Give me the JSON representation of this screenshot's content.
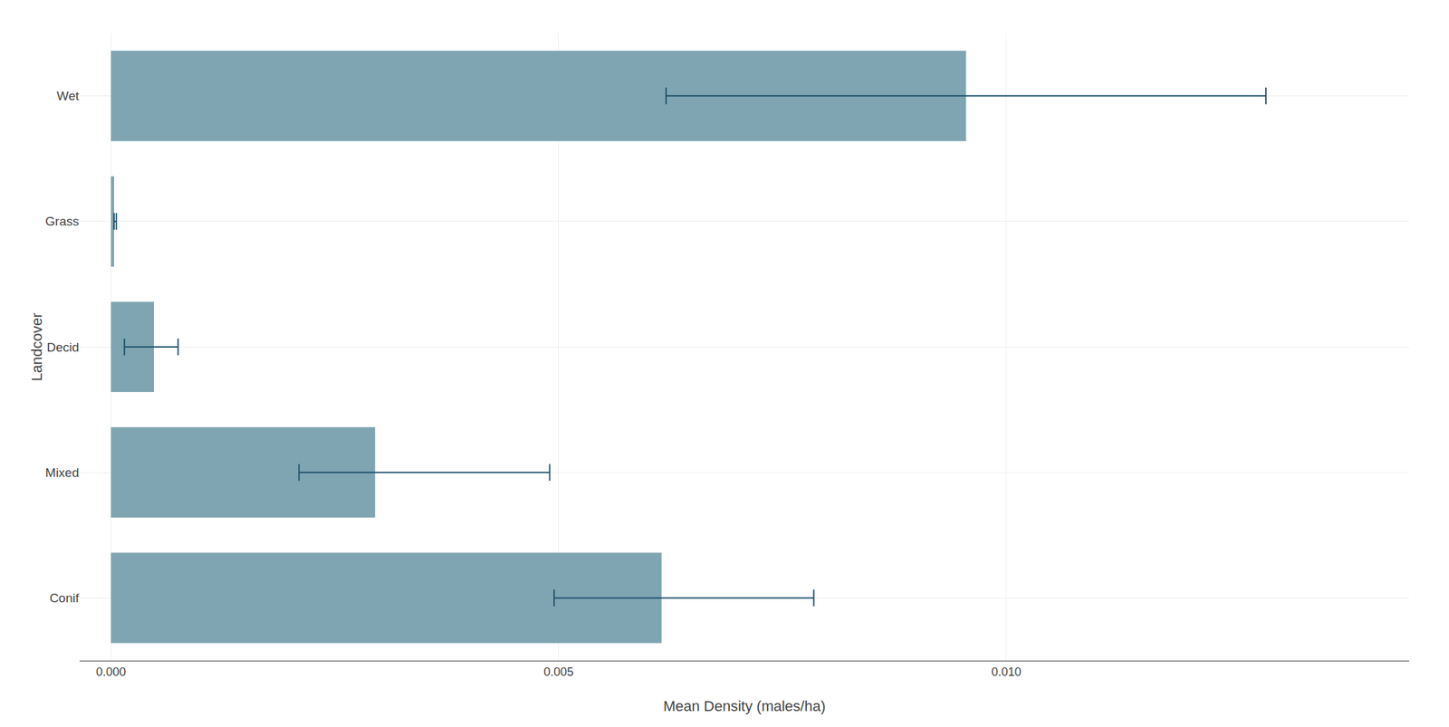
{
  "chart_data": {
    "type": "bar",
    "orientation": "horizontal",
    "xlabel": "Mean Density (males/ha)",
    "ylabel": "Landcover",
    "categories": [
      "Wet",
      "Grass",
      "Decid",
      "Mixed",
      "Conif"
    ],
    "values": [
      0.00955,
      3.5e-05,
      0.00048,
      0.00295,
      0.00615
    ],
    "color": "#7fa5b2",
    "error_bars": {
      "color": "#1c4f6b",
      "low": [
        0.0062,
        3.5e-05,
        0.00015,
        0.0021,
        0.00495
      ],
      "high": [
        0.0129,
        6e-05,
        0.00075,
        0.0049,
        0.00785
      ]
    },
    "xlim": [
      -0.00035,
      0.0145
    ],
    "xticks": [
      {
        "value": 0.0,
        "label": "0.000"
      },
      {
        "value": 0.005,
        "label": "0.005"
      },
      {
        "value": 0.01,
        "label": "0.010"
      }
    ],
    "grid": true
  }
}
